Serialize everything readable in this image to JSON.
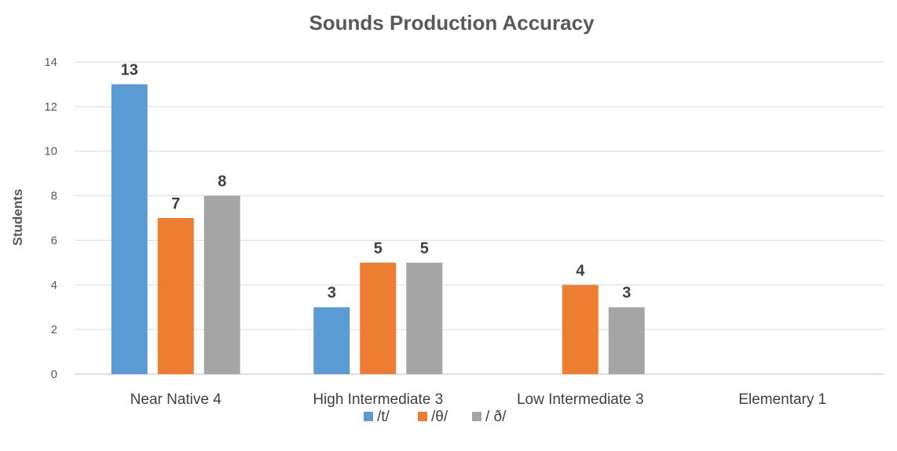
{
  "chart_data": {
    "type": "bar",
    "title": "Sounds Production Accuracy",
    "xlabel": "",
    "ylabel": "Students",
    "ylim": [
      0,
      14
    ],
    "yticks": [
      0,
      2,
      4,
      6,
      8,
      10,
      12,
      14
    ],
    "grid": true,
    "legend_position": "bottom",
    "categories": [
      "Near Native 4",
      "High Intermediate 3",
      "Low Intermediate 3",
      "Elementary 1"
    ],
    "series": [
      {
        "name": "/t/",
        "color": "#5B9BD5",
        "values": [
          13,
          3,
          null,
          null
        ]
      },
      {
        "name": "/θ/",
        "color": "#ED7D31",
        "values": [
          7,
          5,
          4,
          null
        ]
      },
      {
        "name": "/ ð/",
        "color": "#A5A5A5",
        "values": [
          8,
          5,
          3,
          null
        ]
      }
    ]
  }
}
